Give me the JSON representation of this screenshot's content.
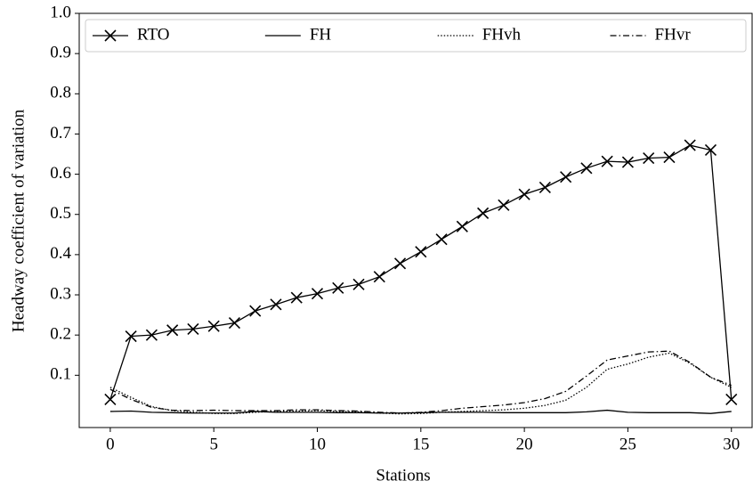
{
  "chart_data": {
    "type": "line",
    "x_label": "Stations",
    "y_label": "Headway coefficient of variation",
    "x": [
      0,
      1,
      2,
      3,
      4,
      5,
      6,
      7,
      8,
      9,
      10,
      11,
      12,
      13,
      14,
      15,
      16,
      17,
      18,
      19,
      20,
      21,
      22,
      23,
      24,
      25,
      26,
      27,
      28,
      29,
      30
    ],
    "series": [
      {
        "name": "RTO",
        "color": "#000000",
        "marker": "x",
        "dash": "solid",
        "values": [
          0.04,
          0.197,
          0.2,
          0.212,
          0.215,
          0.222,
          0.23,
          0.26,
          0.276,
          0.293,
          0.303,
          0.317,
          0.326,
          0.345,
          0.378,
          0.407,
          0.438,
          0.47,
          0.503,
          0.523,
          0.55,
          0.567,
          0.593,
          0.615,
          0.632,
          0.63,
          0.64,
          0.642,
          0.672,
          0.66,
          0.04
        ]
      },
      {
        "name": "FH",
        "color": "#000000",
        "marker": "none",
        "dash": "solid",
        "values": [
          0.01,
          0.011,
          0.008,
          0.007,
          0.006,
          0.006,
          0.006,
          0.01,
          0.008,
          0.008,
          0.008,
          0.007,
          0.007,
          0.006,
          0.006,
          0.007,
          0.008,
          0.008,
          0.008,
          0.007,
          0.007,
          0.007,
          0.007,
          0.009,
          0.013,
          0.008,
          0.007,
          0.007,
          0.007,
          0.005,
          0.01
        ]
      },
      {
        "name": "FHvh",
        "color": "#000000",
        "marker": "none",
        "dash": "dotted",
        "values": [
          0.07,
          0.045,
          0.022,
          0.012,
          0.008,
          0.005,
          0.005,
          0.008,
          0.01,
          0.011,
          0.012,
          0.01,
          0.009,
          0.006,
          0.004,
          0.005,
          0.008,
          0.01,
          0.012,
          0.014,
          0.018,
          0.025,
          0.038,
          0.07,
          0.115,
          0.128,
          0.145,
          0.155,
          0.13,
          0.095,
          0.07
        ]
      },
      {
        "name": "FHvr",
        "color": "#000000",
        "marker": "none",
        "dash": "dashdot",
        "values": [
          0.065,
          0.04,
          0.02,
          0.013,
          0.012,
          0.013,
          0.012,
          0.012,
          0.012,
          0.014,
          0.014,
          0.012,
          0.011,
          0.008,
          0.006,
          0.008,
          0.012,
          0.018,
          0.022,
          0.026,
          0.032,
          0.042,
          0.06,
          0.098,
          0.138,
          0.148,
          0.158,
          0.16,
          0.132,
          0.095,
          0.075
        ]
      }
    ],
    "xlim": [
      -1.5,
      31
    ],
    "ylim": [
      -0.03,
      1.0
    ],
    "xticks": [
      0,
      5,
      10,
      15,
      20,
      25,
      30
    ],
    "yticks": [
      0.1,
      0.2,
      0.3,
      0.4,
      0.5,
      0.6,
      0.7,
      0.8,
      0.9,
      {
        "value": 1,
        "label": "1.0"
      }
    ],
    "grid": false,
    "legend": "top"
  }
}
